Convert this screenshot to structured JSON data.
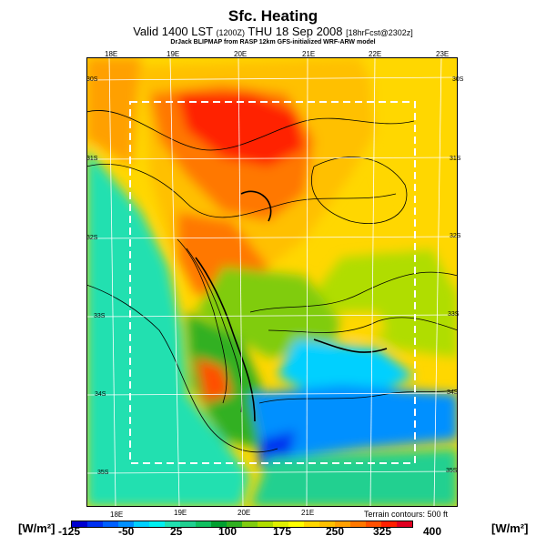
{
  "title": "Sfc. Heating",
  "subtitle": {
    "valid": "Valid 1400 LST",
    "utc": "(1200Z)",
    "date": "THU 18 Sep 2008",
    "forecast": "[18hrFcst@2302z]"
  },
  "source": "DrJack BLIPMAP from RASP 12km GFS-initialized WRF-ARW model",
  "map": {
    "top_lon_labels": [
      "18E",
      "19E",
      "20E",
      "21E",
      "22E",
      "23E"
    ],
    "bottom_lon_labels": [
      "18E",
      "19E",
      "20E",
      "21E"
    ],
    "left_lat_labels": [
      "30S",
      "31S",
      "32S",
      "33S",
      "34S",
      "35S"
    ],
    "right_lat_labels": [
      "30S",
      "31S",
      "32S",
      "33S",
      "34S",
      "35S"
    ],
    "terrain_note": "Terrain contours: 500 ft"
  },
  "colorbar": {
    "unit_left": "[W/m²]",
    "unit_right": "[W/m²]",
    "ticks": [
      "-125",
      "-50",
      "25",
      "100",
      "175",
      "250",
      "325",
      "400"
    ],
    "colors": [
      "#0000d0",
      "#0030f0",
      "#0060ff",
      "#0090ff",
      "#00d0ff",
      "#00f0f0",
      "#20e0b0",
      "#20d090",
      "#10c060",
      "#00a030",
      "#30b020",
      "#80cc10",
      "#b0dd00",
      "#e0f000",
      "#ffff00",
      "#ffd700",
      "#ffc000",
      "#ffa000",
      "#ff7800",
      "#ff5000",
      "#ff2000",
      "#e00020"
    ]
  }
}
